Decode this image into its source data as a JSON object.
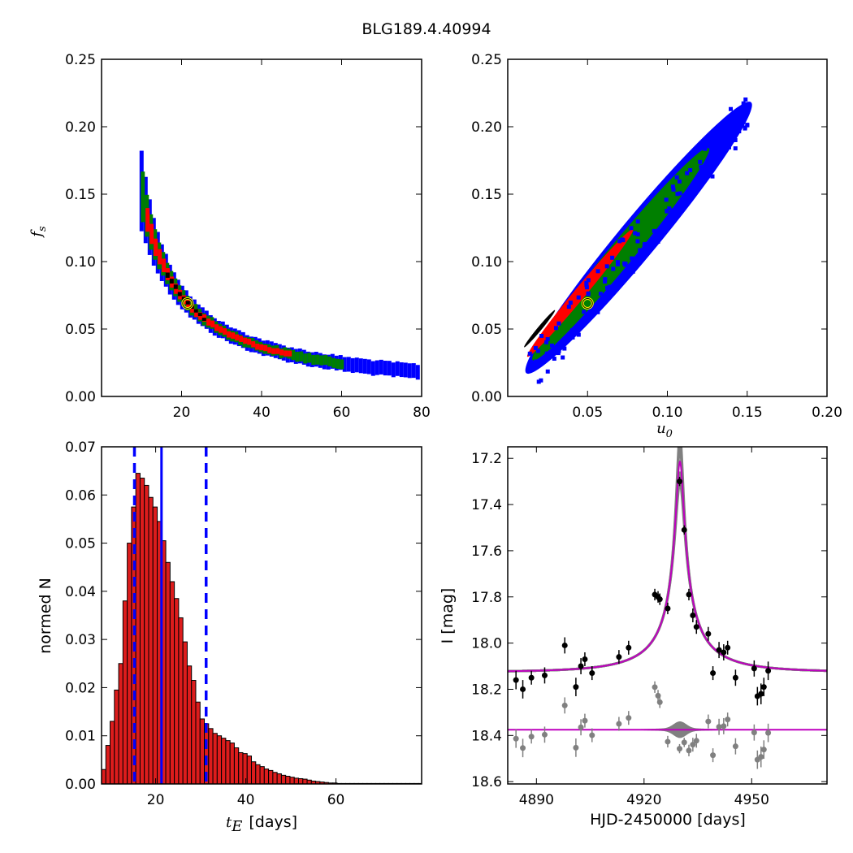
{
  "figure": {
    "title": "BLG189.4.40994"
  },
  "colors": {
    "blue": "#0000ff",
    "green": "#007f00",
    "red": "#ff0000",
    "black": "#000000",
    "magenta": "#bf00bf",
    "gray": "#808080",
    "yellow": "#ffff00",
    "bar_fill": "#dd1c1c"
  },
  "chart_data": [
    {
      "panel": "fs-vs-tE",
      "type": "heatmap",
      "xlabel": "",
      "ylabel": "f_s",
      "ylabel_display": "f",
      "ylabel_sub": "s",
      "xlim": [
        0,
        80
      ],
      "ylim": [
        0,
        0.25
      ],
      "xticks": [
        20,
        40,
        60,
        80
      ],
      "yticks": [
        0.0,
        0.05,
        0.1,
        0.15,
        0.2,
        0.25
      ],
      "xtick_labels": [
        "20",
        "40",
        "60",
        "80"
      ],
      "ytick_labels": [
        "0.00",
        "0.05",
        "0.10",
        "0.15",
        "0.20",
        "0.25"
      ],
      "density_levels": [
        "blue",
        "green",
        "red",
        "black"
      ],
      "curve": {
        "form": "fs * tE = const",
        "k": 1.45,
        "tE_min": 9.5,
        "tE_max": 79
      },
      "best_fit": {
        "x": 21.5,
        "y": 0.069
      }
    },
    {
      "panel": "fs-vs-u0",
      "type": "heatmap",
      "xlabel": "u_0",
      "xlabel_display": "u",
      "xlabel_sub": "0",
      "ylabel": "",
      "xlim": [
        0,
        0.2
      ],
      "ylim": [
        0,
        0.25
      ],
      "xticks": [
        0.05,
        0.1,
        0.15,
        0.2
      ],
      "yticks": [
        0.0,
        0.05,
        0.1,
        0.15,
        0.2,
        0.25
      ],
      "xtick_labels": [
        "0.05",
        "0.10",
        "0.15",
        "0.20"
      ],
      "ytick_labels": [
        "0.00",
        "0.05",
        "0.10",
        "0.15",
        "0.20",
        "0.25"
      ],
      "density_levels": [
        "blue",
        "green",
        "red",
        "black"
      ],
      "trend": {
        "x0": 0.012,
        "y0": 0.018,
        "x1": 0.15,
        "y1": 0.215
      },
      "best_fit": {
        "x": 0.05,
        "y": 0.069
      }
    },
    {
      "panel": "tE-histogram",
      "type": "bar",
      "xlabel": "t_E [days]",
      "xlabel_display": "t",
      "xlabel_sub": "E",
      "xlabel_unit": "[days]",
      "ylabel": "normed N",
      "xlim": [
        8,
        79
      ],
      "ylim": [
        0,
        0.07
      ],
      "xticks": [
        20,
        40,
        60
      ],
      "yticks": [
        0.0,
        0.01,
        0.02,
        0.03,
        0.04,
        0.05,
        0.06,
        0.07
      ],
      "xtick_labels": [
        "20",
        "40",
        "60"
      ],
      "ytick_labels": [
        "0.00",
        "0.01",
        "0.02",
        "0.03",
        "0.04",
        "0.05",
        "0.06",
        "0.07"
      ],
      "bin_start": 8.0,
      "bin_width": 0.95,
      "values": [
        0.003,
        0.008,
        0.013,
        0.0195,
        0.025,
        0.038,
        0.05,
        0.0575,
        0.0645,
        0.0635,
        0.062,
        0.0595,
        0.0575,
        0.0545,
        0.0505,
        0.046,
        0.042,
        0.0385,
        0.0345,
        0.0295,
        0.0245,
        0.0215,
        0.017,
        0.0135,
        0.0125,
        0.0115,
        0.0105,
        0.01,
        0.0095,
        0.009,
        0.0085,
        0.0075,
        0.0065,
        0.0063,
        0.0058,
        0.0046,
        0.004,
        0.0036,
        0.0031,
        0.0028,
        0.0024,
        0.0021,
        0.0018,
        0.0016,
        0.0014,
        0.0012,
        0.0011,
        0.001,
        0.0008,
        0.0006,
        0.0005,
        0.0004,
        0.0003,
        0.0002,
        0.0002,
        0.0001,
        0.0001,
        0.0001,
        0.0001,
        0.0001,
        0.0001,
        0.0001,
        0.0001,
        0.0001,
        0.0001,
        0.0001,
        0.0001,
        0.0001,
        0.0001,
        0.0001,
        0.0001,
        0.0001,
        0.0001,
        0.0001,
        0.0001
      ],
      "median_line": 21.3,
      "interval_lines": [
        15.3,
        31.2
      ]
    },
    {
      "panel": "lightcurve",
      "type": "scatter",
      "xlabel": "HJD-2450000 [days]",
      "ylabel": "I [mag]",
      "xlim": [
        4882,
        4971
      ],
      "ylim": [
        18.61,
        17.15
      ],
      "xticks": [
        4890,
        4920,
        4950
      ],
      "yticks": [
        17.2,
        17.4,
        17.6,
        17.8,
        18.0,
        18.2,
        18.4,
        18.6
      ],
      "xtick_labels": [
        "4890",
        "4920",
        "4950"
      ],
      "ytick_labels": [
        "17.2",
        "17.4",
        "17.6",
        "17.8",
        "18.0",
        "18.2",
        "18.4",
        "18.6"
      ],
      "model": {
        "t0": 4930.0,
        "tE": 21.5,
        "u0": 0.05,
        "baseline": 18.125,
        "fs": 0.069
      },
      "residual_baseline": 18.375,
      "points": [
        {
          "x": 4884.3,
          "y": 18.16,
          "err": 0.04
        },
        {
          "x": 4886.2,
          "y": 18.2,
          "err": 0.04
        },
        {
          "x": 4888.6,
          "y": 18.15,
          "err": 0.03
        },
        {
          "x": 4892.3,
          "y": 18.14,
          "err": 0.035
        },
        {
          "x": 4897.9,
          "y": 18.01,
          "err": 0.035
        },
        {
          "x": 4901.0,
          "y": 18.19,
          "err": 0.04
        },
        {
          "x": 4902.4,
          "y": 18.1,
          "err": 0.035
        },
        {
          "x": 4903.5,
          "y": 18.07,
          "err": 0.03
        },
        {
          "x": 4905.5,
          "y": 18.13,
          "err": 0.03
        },
        {
          "x": 4913.0,
          "y": 18.06,
          "err": 0.03
        },
        {
          "x": 4915.7,
          "y": 18.02,
          "err": 0.03
        },
        {
          "x": 4923.0,
          "y": 17.79,
          "err": 0.025
        },
        {
          "x": 4923.9,
          "y": 17.8,
          "err": 0.025
        },
        {
          "x": 4924.4,
          "y": 17.81,
          "err": 0.025
        },
        {
          "x": 4926.6,
          "y": 17.85,
          "err": 0.025
        },
        {
          "x": 4929.9,
          "y": 17.3,
          "err": 0.02
        },
        {
          "x": 4931.2,
          "y": 17.51,
          "err": 0.02
        },
        {
          "x": 4932.5,
          "y": 17.79,
          "err": 0.025
        },
        {
          "x": 4933.6,
          "y": 17.88,
          "err": 0.03
        },
        {
          "x": 4934.6,
          "y": 17.93,
          "err": 0.03
        },
        {
          "x": 4937.9,
          "y": 17.96,
          "err": 0.03
        },
        {
          "x": 4939.2,
          "y": 18.13,
          "err": 0.03
        },
        {
          "x": 4940.9,
          "y": 18.03,
          "err": 0.035
        },
        {
          "x": 4942.2,
          "y": 18.04,
          "err": 0.035
        },
        {
          "x": 4943.3,
          "y": 18.02,
          "err": 0.03
        },
        {
          "x": 4945.5,
          "y": 18.15,
          "err": 0.035
        },
        {
          "x": 4950.7,
          "y": 18.11,
          "err": 0.035
        },
        {
          "x": 4951.6,
          "y": 18.23,
          "err": 0.04
        },
        {
          "x": 4952.6,
          "y": 18.22,
          "err": 0.045
        },
        {
          "x": 4953.4,
          "y": 18.19,
          "err": 0.04
        },
        {
          "x": 4954.6,
          "y": 18.12,
          "err": 0.04
        }
      ]
    }
  ]
}
